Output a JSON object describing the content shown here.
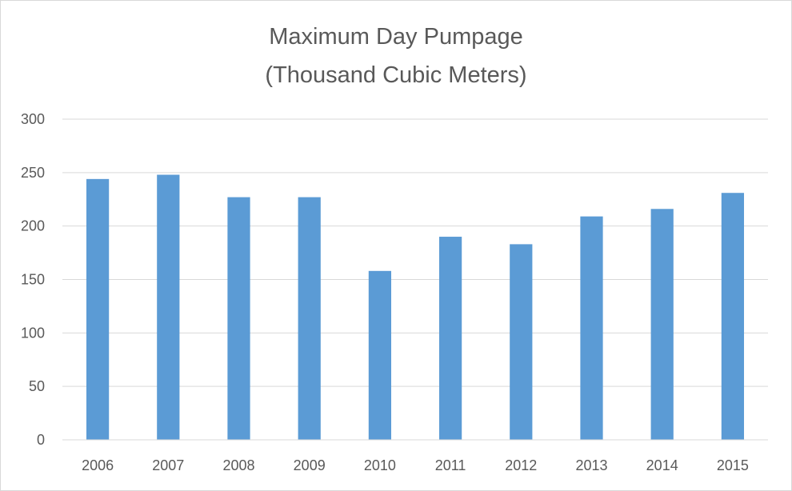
{
  "chart_data": {
    "type": "bar",
    "title": "Maximum Day Pumpage",
    "subtitle": "(Thousand Cubic Meters)",
    "xlabel": "",
    "ylabel": "",
    "categories": [
      "2006",
      "2007",
      "2008",
      "2009",
      "2010",
      "2011",
      "2012",
      "2013",
      "2014",
      "2015"
    ],
    "values": [
      244,
      248,
      227,
      227,
      158,
      190,
      183,
      209,
      216,
      231
    ],
    "ylim": [
      0,
      300
    ],
    "yticks": [
      0,
      50,
      100,
      150,
      200,
      250,
      300
    ],
    "grid": true,
    "legend": "none",
    "colors": {
      "bar": "#5b9bd5",
      "gridline": "#d9d9d9",
      "axis_line": "#d9d9d9",
      "text": "#595959"
    }
  }
}
